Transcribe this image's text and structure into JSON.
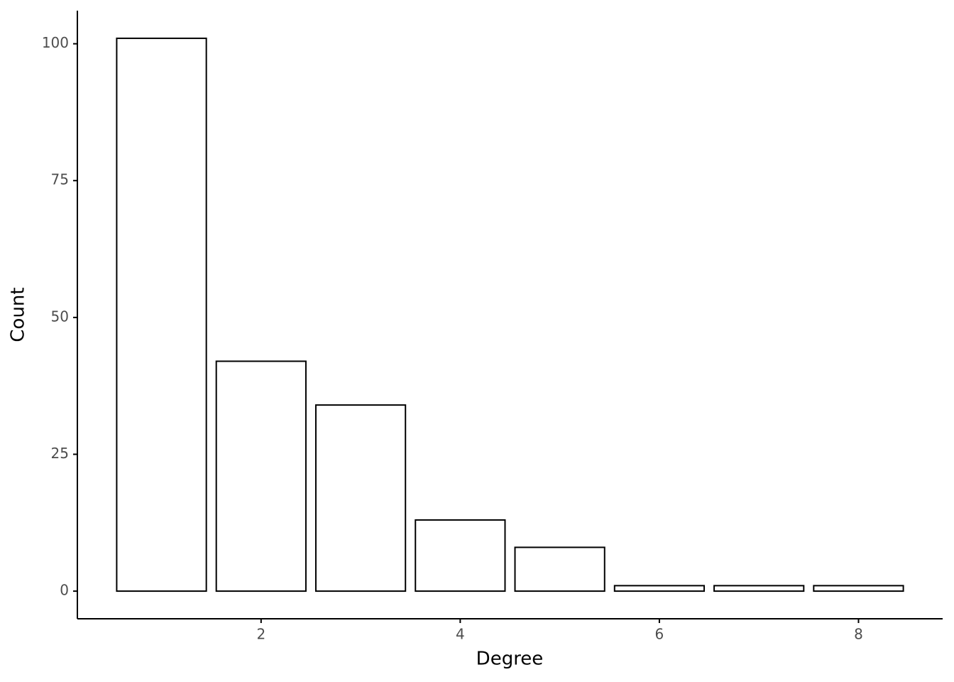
{
  "chart_data": {
    "type": "bar",
    "x": [
      1,
      2,
      3,
      4,
      5,
      6,
      7,
      8
    ],
    "values": [
      101,
      42,
      34,
      13,
      8,
      1,
      1,
      1
    ],
    "color": "#ffffff",
    "edge_color": "#000000",
    "x_label": "Degree",
    "y_label": "Count",
    "xlim": [
      0.155,
      8.845
    ],
    "xticks": [
      2,
      4,
      6,
      8
    ],
    "ylim": [
      -5.05,
      106.05
    ],
    "yticks": [
      0,
      25,
      50,
      75,
      100
    ],
    "grid": false
  }
}
